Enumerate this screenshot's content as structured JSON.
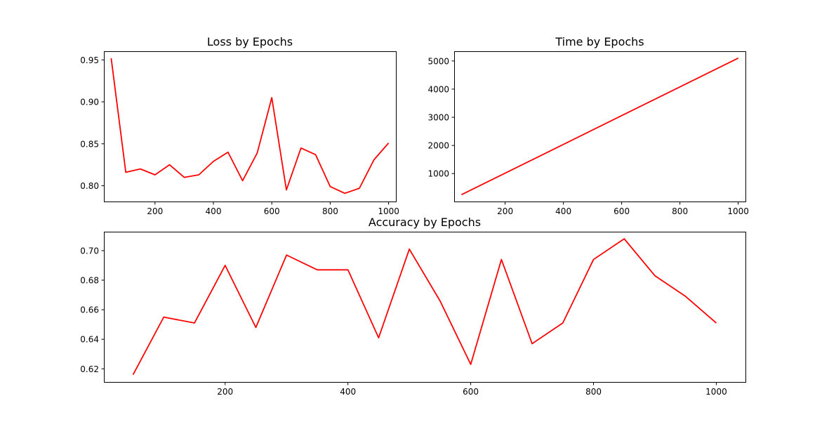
{
  "chart_data": [
    {
      "type": "line",
      "title": "Loss by Epochs",
      "xlabel": "",
      "ylabel": "",
      "xlim": [
        25,
        1025
      ],
      "ylim": [
        0.7812,
        0.9603
      ],
      "xticks": [
        200,
        400,
        600,
        800,
        1000
      ],
      "yticks": [
        0.8,
        0.85,
        0.9,
        0.95
      ],
      "ytick_format": "2",
      "grid": false,
      "series": [
        {
          "color": "#ff0000",
          "x": [
            50,
            100,
            150,
            200,
            250,
            300,
            350,
            400,
            450,
            500,
            550,
            600,
            650,
            700,
            750,
            800,
            850,
            900,
            950,
            1000
          ],
          "y": [
            0.952,
            0.816,
            0.82,
            0.813,
            0.825,
            0.81,
            0.813,
            0.829,
            0.84,
            0.806,
            0.839,
            0.905,
            0.795,
            0.845,
            0.837,
            0.799,
            0.791,
            0.797,
            0.831,
            0.851
          ]
        }
      ]
    },
    {
      "type": "line",
      "title": "Time by Epochs",
      "xlabel": "",
      "ylabel": "",
      "xlim": [
        25,
        1025
      ],
      "ylim": [
        8,
        5345
      ],
      "xticks": [
        200,
        400,
        600,
        800,
        1000
      ],
      "yticks": [
        1000,
        2000,
        3000,
        4000,
        5000
      ],
      "ytick_format": "0",
      "grid": false,
      "series": [
        {
          "color": "#ff0000",
          "x": [
            50,
            1000
          ],
          "y": [
            250,
            5100
          ]
        }
      ]
    },
    {
      "type": "line",
      "title": "Accuracy by Epochs",
      "xlabel": "",
      "ylabel": "",
      "xlim": [
        2.5,
        1047.5
      ],
      "ylim": [
        0.6111,
        0.7128
      ],
      "xticks": [
        200,
        400,
        600,
        800,
        1000
      ],
      "yticks": [
        0.62,
        0.64,
        0.66,
        0.68,
        0.7
      ],
      "ytick_format": "2",
      "grid": false,
      "series": [
        {
          "color": "#ff0000",
          "x": [
            50,
            100,
            150,
            200,
            250,
            300,
            350,
            400,
            450,
            500,
            550,
            600,
            650,
            700,
            750,
            800,
            850,
            900,
            950,
            1000
          ],
          "y": [
            0.616,
            0.655,
            0.651,
            0.69,
            0.648,
            0.697,
            0.687,
            0.687,
            0.641,
            0.701,
            0.666,
            0.623,
            0.694,
            0.637,
            0.651,
            0.694,
            0.708,
            0.683,
            0.669,
            0.651
          ]
        }
      ]
    }
  ]
}
